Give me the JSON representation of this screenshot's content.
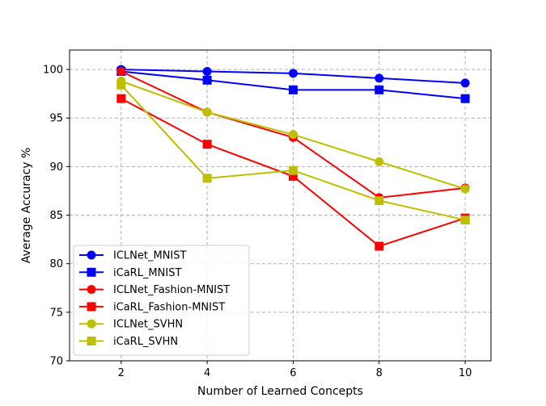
{
  "chart_data": {
    "type": "line",
    "title": "",
    "xlabel": "Number of Learned Concepts",
    "ylabel": "Average Accuracy %",
    "x": [
      2,
      4,
      6,
      8,
      10
    ],
    "xlim": [
      0.8,
      10.6
    ],
    "ylim": [
      70,
      102
    ],
    "xticks": [
      "2",
      "4",
      "6",
      "8",
      "10"
    ],
    "yticks": [
      "70",
      "75",
      "80",
      "85",
      "90",
      "95",
      "100"
    ],
    "grid": true,
    "legend_position": "lower-left",
    "series": [
      {
        "name": "ICLNet_MNIST",
        "color": "#0000ff",
        "marker": "circle",
        "values": [
          100.0,
          99.8,
          99.6,
          99.1,
          98.6
        ]
      },
      {
        "name": "iCaRL_MNIST",
        "color": "#0000ff",
        "marker": "square",
        "values": [
          99.8,
          98.9,
          97.9,
          97.9,
          97.0
        ]
      },
      {
        "name": "ICLNet_Fashion-MNIST",
        "color": "#ff0000",
        "marker": "circle",
        "values": [
          99.8,
          95.6,
          93.0,
          86.8,
          87.8
        ]
      },
      {
        "name": "iCaRL_Fashion-MNIST",
        "color": "#ff0000",
        "marker": "square",
        "values": [
          97.0,
          92.3,
          89.0,
          81.8,
          84.7
        ]
      },
      {
        "name": "ICLNet_SVHN",
        "color": "#bfbf00",
        "marker": "circle",
        "values": [
          98.8,
          95.6,
          93.3,
          90.5,
          87.7
        ]
      },
      {
        "name": "iCaRL_SVHN",
        "color": "#bfbf00",
        "marker": "square",
        "values": [
          98.4,
          88.8,
          89.6,
          86.5,
          84.5
        ]
      }
    ]
  }
}
